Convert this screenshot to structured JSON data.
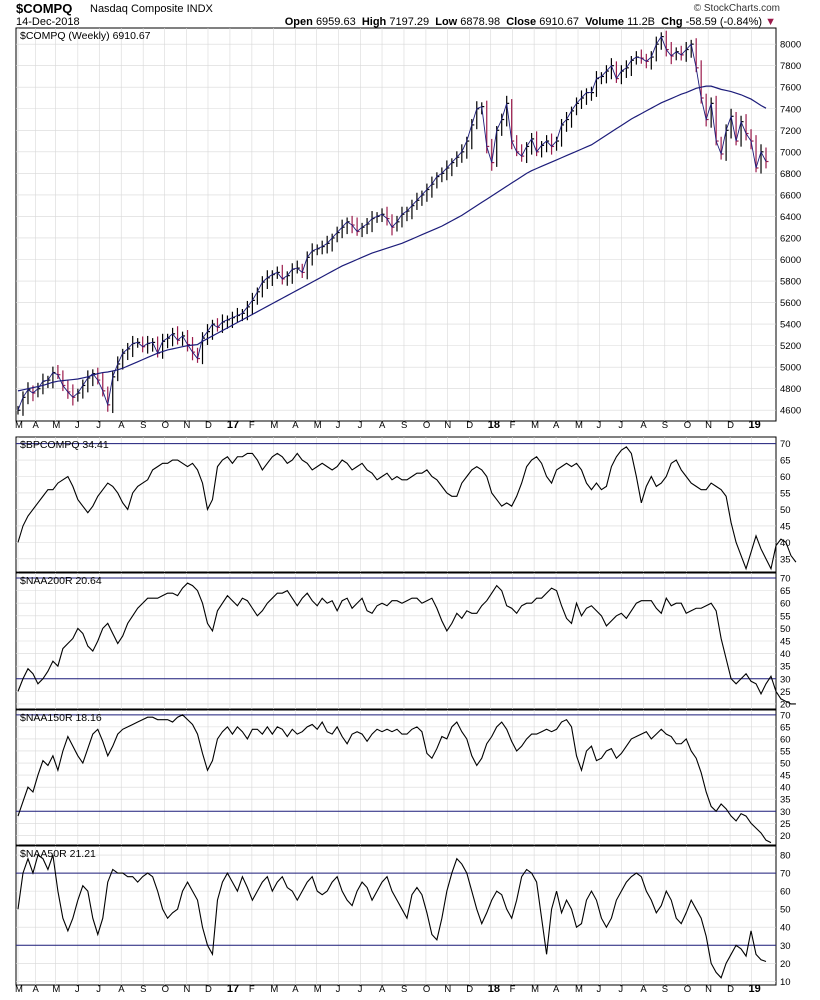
{
  "header": {
    "symbol": "$COMPQ",
    "name": "Nasdaq Composite INDX",
    "date": "14-Dec-2018",
    "brand": "© StockCharts.com",
    "open_label": "Open",
    "open": "6959.63",
    "high_label": "High",
    "high": "7197.29",
    "low_label": "Low",
    "low": "6878.98",
    "close_label": "Close",
    "close": "6910.67",
    "volume_label": "Volume",
    "volume": "11.2B",
    "chg_label": "Chg",
    "chg": "-58.59 (-0.84%)",
    "down_arrow": "▼"
  },
  "colors": {
    "price_up": "#000000",
    "price_down": "#9b1b4b",
    "ma": "#1c1c7a",
    "line": "#000000",
    "level": "#1c1c7a",
    "grid": "#d8d8d8"
  },
  "x_axis": {
    "labels": [
      "M",
      "A",
      "M",
      "J",
      "J",
      "A",
      "S",
      "O",
      "N",
      "D",
      "17",
      "F",
      "M",
      "A",
      "M",
      "J",
      "J",
      "A",
      "S",
      "O",
      "N",
      "D",
      "18",
      "F",
      "M",
      "A",
      "M",
      "J",
      "J",
      "A",
      "S",
      "O",
      "N",
      "D",
      "19"
    ],
    "positions": [
      0.0,
      3.5,
      7.5,
      12.0,
      16.3,
      20.7,
      25.1,
      29.4,
      33.8,
      38.1,
      42.5,
      46.9,
      51.2,
      55.6,
      59.9,
      64.3,
      68.7,
      73.0,
      77.4,
      81.8,
      86.1,
      90.5,
      94.8,
      99.2,
      103.5,
      107.9,
      112.3,
      116.6,
      121.0,
      125.4,
      129.7,
      134.1,
      138.4,
      142.8,
      147.1
    ]
  },
  "chart_data": [
    {
      "type": "line",
      "label": "$COMPQ (Weekly) 6910.67",
      "series": [
        {
          "values": [
            4600,
            4720,
            4790,
            4760,
            4800,
            4870,
            4880,
            4950,
            4930,
            4830,
            4770,
            4720,
            4760,
            4830,
            4900,
            4940,
            4880,
            4780,
            4650,
            4910,
            5030,
            5130,
            5170,
            5220,
            5230,
            5190,
            5220,
            5230,
            5130,
            5240,
            5270,
            5310,
            5250,
            5290,
            5210,
            5140,
            5080,
            5270,
            5330,
            5400,
            5370,
            5420,
            5440,
            5460,
            5480,
            5500,
            5560,
            5620,
            5700,
            5790,
            5830,
            5860,
            5880,
            5820,
            5850,
            5910,
            5920,
            5880,
            6020,
            6080,
            6100,
            6120,
            6150,
            6200,
            6250,
            6300,
            6350,
            6320,
            6260,
            6300,
            6330,
            6380,
            6400,
            6420,
            6380,
            6300,
            6350,
            6420,
            6450,
            6500,
            6550,
            6600,
            6650,
            6700,
            6770,
            6800,
            6850,
            6900,
            6950,
            7000,
            7100,
            7250,
            7400,
            7420,
            7050,
            6900,
            7200,
            7300,
            7450,
            7100,
            7000,
            6960,
            7050,
            7120,
            7000,
            7060,
            7100,
            7050,
            7100,
            7250,
            7300,
            7380,
            7450,
            7500,
            7550,
            7550,
            7680,
            7700,
            7750,
            7800,
            7680,
            7750,
            7780,
            7850,
            7880,
            7870,
            7840,
            7880,
            8000,
            8070,
            7950,
            7890,
            7930,
            7900,
            7950,
            8000,
            7780,
            7500,
            7300,
            7450,
            7100,
            6980,
            7200,
            7330,
            7100,
            7280,
            7170,
            7100,
            6850,
            7000,
            6910
          ]
        },
        {
          "values": [
            4780,
            4790,
            4800,
            4810,
            4820,
            4830,
            4845,
            4860,
            4870,
            4875,
            4880,
            4885,
            4890,
            4900,
            4910,
            4925,
            4940,
            4950,
            4955,
            4965,
            4975,
            4990,
            5010,
            5030,
            5050,
            5070,
            5090,
            5110,
            5130,
            5145,
            5160,
            5170,
            5180,
            5190,
            5200,
            5205,
            5210,
            5240,
            5265,
            5290,
            5315,
            5340,
            5365,
            5390,
            5415,
            5440,
            5465,
            5490,
            5515,
            5540,
            5565,
            5590,
            5615,
            5640,
            5665,
            5690,
            5715,
            5740,
            5765,
            5790,
            5815,
            5840,
            5865,
            5890,
            5915,
            5940,
            5960,
            5980,
            6000,
            6020,
            6040,
            6060,
            6075,
            6090,
            6105,
            6120,
            6135,
            6150,
            6170,
            6190,
            6210,
            6230,
            6250,
            6270,
            6290,
            6310,
            6335,
            6360,
            6385,
            6410,
            6440,
            6470,
            6500,
            6530,
            6560,
            6590,
            6620,
            6650,
            6680,
            6710,
            6740,
            6770,
            6800,
            6825,
            6845,
            6865,
            6885,
            6905,
            6925,
            6945,
            6965,
            6985,
            7005,
            7025,
            7045,
            7065,
            7095,
            7125,
            7155,
            7185,
            7215,
            7245,
            7275,
            7305,
            7330,
            7355,
            7380,
            7405,
            7430,
            7455,
            7475,
            7495,
            7515,
            7535,
            7550,
            7570,
            7590,
            7600,
            7610,
            7610,
            7595,
            7580,
            7570,
            7560,
            7545,
            7530,
            7510,
            7490,
            7460,
            7430,
            7405
          ]
        }
      ],
      "ylim": [
        4500,
        8150
      ],
      "y_ticks": [
        4600,
        4800,
        5000,
        5200,
        5400,
        5600,
        5800,
        6000,
        6200,
        6400,
        6600,
        6800,
        7000,
        7200,
        7400,
        7600,
        7800,
        8000
      ]
    },
    {
      "type": "line",
      "label": "$BPCOMPQ 34.41",
      "series": [
        {
          "values": [
            40,
            45,
            48,
            50,
            52,
            54,
            56,
            56,
            58,
            59,
            60,
            57,
            53,
            51,
            49,
            51,
            54,
            56,
            58,
            57,
            55,
            52,
            50,
            55,
            57,
            58,
            59,
            62,
            63,
            64,
            64,
            65,
            65,
            64,
            63,
            64,
            62,
            58,
            50,
            53,
            63,
            65,
            66,
            64,
            66,
            66,
            67,
            67,
            65,
            62,
            64,
            66,
            67,
            66,
            64,
            65,
            67,
            65,
            64,
            62,
            63,
            64,
            63,
            62,
            63,
            65,
            64,
            62,
            63,
            64,
            62,
            61,
            59,
            60,
            61,
            59,
            60,
            59,
            59,
            60,
            61,
            61,
            62,
            60,
            59,
            57,
            55,
            54,
            54,
            58,
            60,
            62,
            63,
            62,
            60,
            55,
            53,
            51,
            52,
            51,
            54,
            58,
            63,
            65,
            66,
            64,
            60,
            58,
            62,
            63,
            64,
            63,
            64,
            62,
            58,
            56,
            58,
            56,
            57,
            63,
            66,
            68,
            69,
            67,
            60,
            52,
            57,
            60,
            57,
            58,
            60,
            64,
            65,
            62,
            60,
            58,
            57,
            56,
            56,
            58,
            57,
            56,
            54,
            46,
            40,
            36,
            32,
            37,
            42,
            38,
            35,
            32,
            39,
            41,
            40,
            36,
            34
          ]
        }
      ],
      "ylim": [
        31,
        72
      ],
      "y_ticks": [
        35,
        40,
        45,
        50,
        55,
        60,
        65,
        70
      ],
      "levels": [
        70
      ]
    },
    {
      "type": "line",
      "label": "$NAA200R 20.64",
      "series": [
        {
          "values": [
            25,
            30,
            34,
            32,
            28,
            30,
            33,
            37,
            35,
            42,
            44,
            46,
            50,
            48,
            43,
            41,
            45,
            50,
            52,
            48,
            44,
            47,
            52,
            55,
            58,
            60,
            62,
            62,
            62,
            63,
            64,
            64,
            63,
            66,
            68,
            67,
            65,
            60,
            52,
            49,
            57,
            60,
            63,
            61,
            59,
            62,
            61,
            58,
            55,
            57,
            60,
            62,
            64,
            64,
            65,
            62,
            59,
            62,
            64,
            61,
            59,
            62,
            60,
            61,
            57,
            61,
            62,
            58,
            60,
            62,
            57,
            56,
            59,
            60,
            59,
            61,
            61,
            60,
            61,
            62,
            62,
            60,
            61,
            62,
            58,
            53,
            49,
            52,
            56,
            54,
            57,
            56,
            56,
            59,
            61,
            64,
            67,
            65,
            59,
            58,
            56,
            59,
            60,
            60,
            62,
            62,
            64,
            66,
            65,
            59,
            54,
            52,
            60,
            55,
            58,
            59,
            57,
            55,
            51,
            53,
            55,
            56,
            54,
            57,
            60,
            61,
            61,
            61,
            58,
            56,
            62,
            59,
            60,
            60,
            56,
            57,
            58,
            58,
            59,
            60,
            57,
            46,
            38,
            30,
            28,
            30,
            32,
            29,
            28,
            24,
            28,
            31,
            25,
            22,
            21,
            20,
            20
          ]
        }
      ],
      "ylim": [
        18,
        72
      ],
      "y_ticks": [
        20,
        25,
        30,
        35,
        40,
        45,
        50,
        55,
        60,
        65,
        70
      ],
      "levels": [
        70,
        30
      ]
    },
    {
      "type": "line",
      "label": "$NAA150R 18.16",
      "series": [
        {
          "values": [
            28,
            34,
            40,
            38,
            45,
            51,
            49,
            53,
            47,
            55,
            61,
            57,
            53,
            50,
            56,
            62,
            64,
            59,
            53,
            57,
            62,
            64,
            65,
            66,
            67,
            68,
            69,
            69,
            68,
            68,
            68,
            67,
            69,
            70,
            68,
            66,
            62,
            54,
            47,
            51,
            60,
            63,
            65,
            62,
            65,
            63,
            60,
            64,
            64,
            62,
            65,
            62,
            65,
            64,
            61,
            64,
            62,
            63,
            65,
            66,
            64,
            67,
            63,
            62,
            65,
            61,
            58,
            62,
            63,
            62,
            59,
            62,
            64,
            63,
            64,
            63,
            64,
            62,
            62,
            64,
            65,
            63,
            54,
            52,
            56,
            61,
            60,
            65,
            67,
            63,
            60,
            53,
            49,
            52,
            58,
            61,
            65,
            67,
            64,
            59,
            55,
            57,
            60,
            62,
            62,
            63,
            64,
            63,
            64,
            67,
            68,
            65,
            53,
            47,
            55,
            57,
            51,
            52,
            55,
            56,
            52,
            54,
            57,
            60,
            61,
            62,
            63,
            60,
            62,
            64,
            62,
            61,
            58,
            58,
            60,
            55,
            52,
            46,
            38,
            32,
            30,
            33,
            31,
            28,
            26,
            29,
            28,
            25,
            23,
            21,
            18,
            17
          ]
        }
      ],
      "ylim": [
        16,
        72
      ],
      "y_ticks": [
        20,
        25,
        30,
        35,
        40,
        45,
        50,
        55,
        60,
        65,
        70
      ],
      "levels": [
        70,
        30
      ]
    },
    {
      "type": "line",
      "label": "$NAA50R 21.21",
      "series": [
        {
          "values": [
            50,
            70,
            78,
            70,
            80,
            78,
            72,
            80,
            60,
            45,
            38,
            45,
            55,
            63,
            60,
            45,
            36,
            45,
            65,
            72,
            70,
            70,
            68,
            68,
            65,
            68,
            70,
            68,
            60,
            50,
            45,
            48,
            50,
            60,
            65,
            60,
            55,
            40,
            30,
            25,
            55,
            65,
            70,
            65,
            60,
            68,
            62,
            55,
            60,
            65,
            68,
            60,
            65,
            68,
            62,
            60,
            55,
            60,
            65,
            68,
            60,
            58,
            60,
            65,
            68,
            60,
            55,
            52,
            60,
            65,
            62,
            55,
            60,
            65,
            68,
            60,
            55,
            50,
            45,
            58,
            62,
            58,
            48,
            36,
            33,
            45,
            60,
            70,
            78,
            75,
            70,
            60,
            50,
            42,
            48,
            55,
            60,
            58,
            50,
            45,
            55,
            68,
            72,
            70,
            65,
            45,
            25,
            50,
            60,
            48,
            55,
            50,
            40,
            42,
            55,
            60,
            55,
            45,
            40,
            45,
            55,
            60,
            65,
            68,
            70,
            68,
            60,
            55,
            48,
            52,
            60,
            55,
            45,
            42,
            48,
            55,
            50,
            45,
            35,
            20,
            15,
            12,
            20,
            25,
            30,
            28,
            24,
            38,
            25,
            22,
            21
          ]
        }
      ],
      "ylim": [
        8,
        85
      ],
      "y_ticks": [
        10,
        20,
        30,
        40,
        50,
        60,
        70,
        80
      ],
      "levels": [
        70,
        30
      ]
    }
  ]
}
